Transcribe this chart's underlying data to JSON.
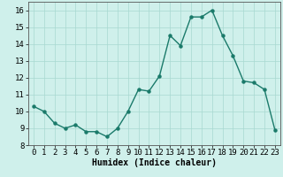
{
  "x": [
    0,
    1,
    2,
    3,
    4,
    5,
    6,
    7,
    8,
    9,
    10,
    11,
    12,
    13,
    14,
    15,
    16,
    17,
    18,
    19,
    20,
    21,
    22,
    23
  ],
  "y": [
    10.3,
    10.0,
    9.3,
    9.0,
    9.2,
    8.8,
    8.8,
    8.5,
    9.0,
    10.0,
    11.3,
    11.2,
    12.1,
    14.5,
    13.9,
    15.6,
    15.6,
    16.0,
    14.5,
    13.3,
    11.8,
    11.7,
    11.3,
    8.9
  ],
  "line_color": "#1a7a6a",
  "marker": "o",
  "marker_size": 2.2,
  "line_width": 1.0,
  "bg_color": "#cff0eb",
  "grid_color": "#a8d8d0",
  "xlabel": "Humidex (Indice chaleur)",
  "xlabel_fontsize": 7,
  "tick_fontsize": 6.5,
  "xlim": [
    -0.5,
    23.5
  ],
  "ylim": [
    8,
    16.5
  ],
  "yticks": [
    8,
    9,
    10,
    11,
    12,
    13,
    14,
    15,
    16
  ],
  "xticks": [
    0,
    1,
    2,
    3,
    4,
    5,
    6,
    7,
    8,
    9,
    10,
    11,
    12,
    13,
    14,
    15,
    16,
    17,
    18,
    19,
    20,
    21,
    22,
    23
  ]
}
